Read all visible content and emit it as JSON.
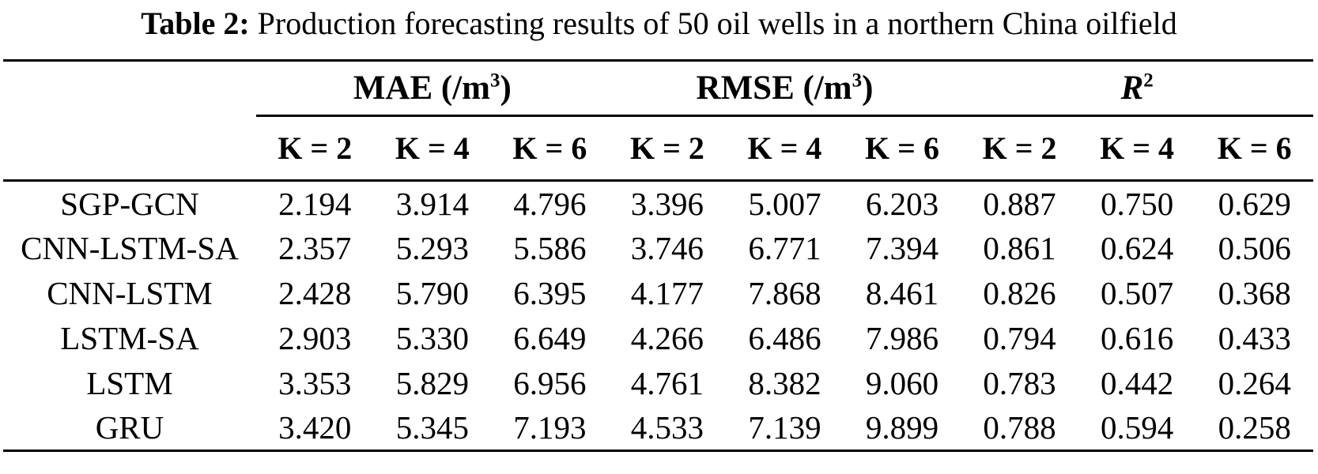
{
  "caption": {
    "label": "Table 2:",
    "text": " Production forecasting results of 50 oil wells in a northern China oilfield"
  },
  "colors": {
    "text": "#000000",
    "background": "#ffffff",
    "rule": "#000000"
  },
  "table": {
    "groups": [
      {
        "base": "MAE (/m",
        "sup": "3",
        "tail": ")"
      },
      {
        "base": "RMSE (/m",
        "sup": "3",
        "tail": ")"
      },
      {
        "base": "R",
        "sup": "2",
        "tail": ""
      }
    ],
    "subheaders": [
      "K = 2",
      "K = 4",
      "K = 6",
      "K = 2",
      "K = 4",
      "K = 6",
      "K = 2",
      "K = 4",
      "K = 6"
    ],
    "rows": [
      {
        "model": "SGP-GCN",
        "values": [
          "2.194",
          "3.914",
          "4.796",
          "3.396",
          "5.007",
          "6.203",
          "0.887",
          "0.750",
          "0.629"
        ]
      },
      {
        "model": "CNN-LSTM-SA",
        "values": [
          "2.357",
          "5.293",
          "5.586",
          "3.746",
          "6.771",
          "7.394",
          "0.861",
          "0.624",
          "0.506"
        ]
      },
      {
        "model": "CNN-LSTM",
        "values": [
          "2.428",
          "5.790",
          "6.395",
          "4.177",
          "7.868",
          "8.461",
          "0.826",
          "0.507",
          "0.368"
        ]
      },
      {
        "model": "LSTM-SA",
        "values": [
          "2.903",
          "5.330",
          "6.649",
          "4.266",
          "6.486",
          "7.986",
          "0.794",
          "0.616",
          "0.433"
        ]
      },
      {
        "model": "LSTM",
        "values": [
          "3.353",
          "5.829",
          "6.956",
          "4.761",
          "8.382",
          "9.060",
          "0.783",
          "0.442",
          "0.264"
        ]
      },
      {
        "model": "GRU",
        "values": [
          "3.420",
          "5.345",
          "7.193",
          "4.533",
          "7.139",
          "9.899",
          "0.788",
          "0.594",
          "0.258"
        ]
      }
    ]
  }
}
